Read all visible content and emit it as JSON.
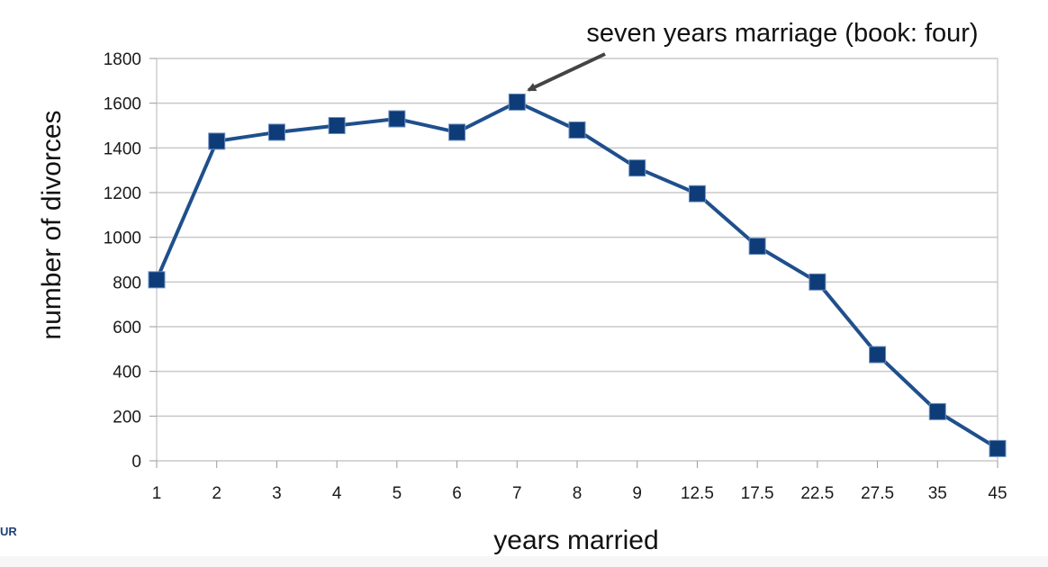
{
  "chart_data": {
    "type": "line",
    "categories": [
      "1",
      "2",
      "3",
      "4",
      "5",
      "6",
      "7",
      "8",
      "9",
      "12.5",
      "17.5",
      "22.5",
      "27.5",
      "35",
      "45"
    ],
    "values": [
      810,
      1430,
      1470,
      1500,
      1530,
      1470,
      1605,
      1480,
      1310,
      1195,
      960,
      800,
      475,
      220,
      55
    ],
    "xlabel": "years married",
    "ylabel": "number of divorces",
    "ylim": [
      0,
      1800
    ],
    "yticks": [
      0,
      200,
      400,
      600,
      800,
      1000,
      1200,
      1400,
      1600,
      1800
    ],
    "grid": "horizontal",
    "annotation": {
      "text": "seven years marriage (book: four)",
      "points_to_category": "7"
    },
    "colors": {
      "line": "#1f4f8c",
      "marker": "#0d3c78",
      "grid": "#c8c8c8"
    }
  },
  "fragment_text": "UR"
}
